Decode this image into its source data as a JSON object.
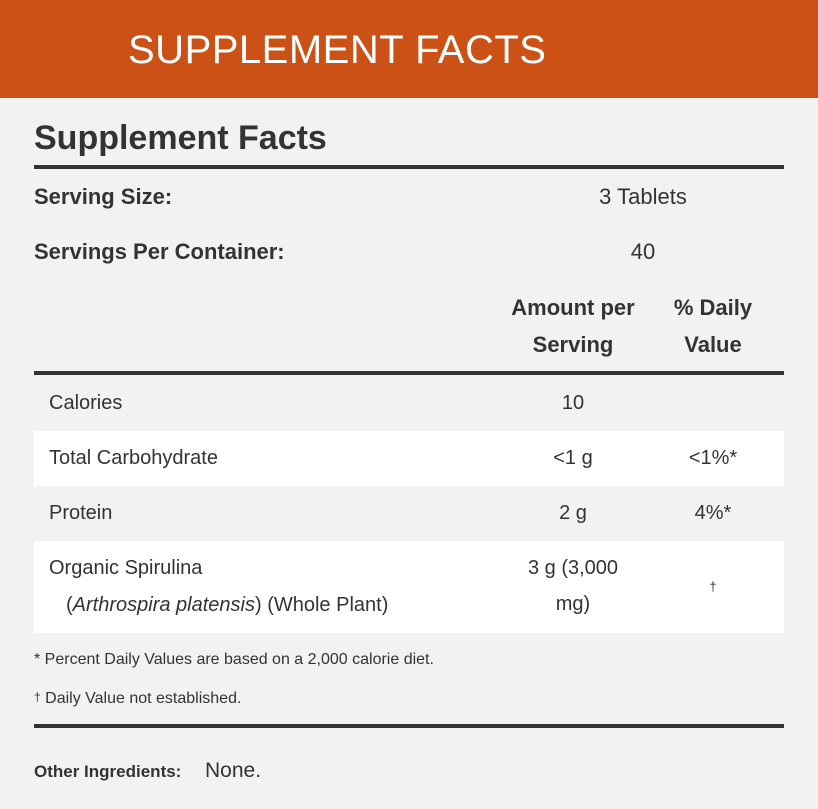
{
  "banner": {
    "title": "SUPPLEMENT FACTS"
  },
  "facts": {
    "heading": "Supplement Facts",
    "serving_size_label": "Serving Size:",
    "serving_size_value": "3 Tablets",
    "servings_per_container_label": "Servings Per Container:",
    "servings_per_container_value": "40",
    "col_amount_line1": "Amount per",
    "col_amount_line2": "Serving",
    "col_dv_line1": "% Daily",
    "col_dv_line2": "Value",
    "rows": [
      {
        "name": "Calories",
        "amount": "10",
        "dv": ""
      },
      {
        "name": "Total Carbohydrate",
        "amount": "<1 g",
        "dv": "<1%*"
      },
      {
        "name": "Protein",
        "amount": "2 g",
        "dv": "4%*"
      },
      {
        "name": "Organic Spirulina",
        "sub_italic": "Arthrospira platensis",
        "sub_rest": "(Whole Plant)",
        "amount_line1": "3 g (3,000",
        "amount_line2": "mg)",
        "dv": "†"
      }
    ],
    "footnote_percent": "* Percent Daily Values are based on a 2,000 calorie diet.",
    "footnote_dagger_symbol": "†",
    "footnote_dagger_text": "Daily Value not established.",
    "other_ingredients_label": "Other Ingredients:",
    "other_ingredients_value": "None."
  },
  "colors": {
    "banner": "#cb5116",
    "background": "#f2f2f2",
    "text": "#333333",
    "row_highlight": "#ffffff"
  }
}
